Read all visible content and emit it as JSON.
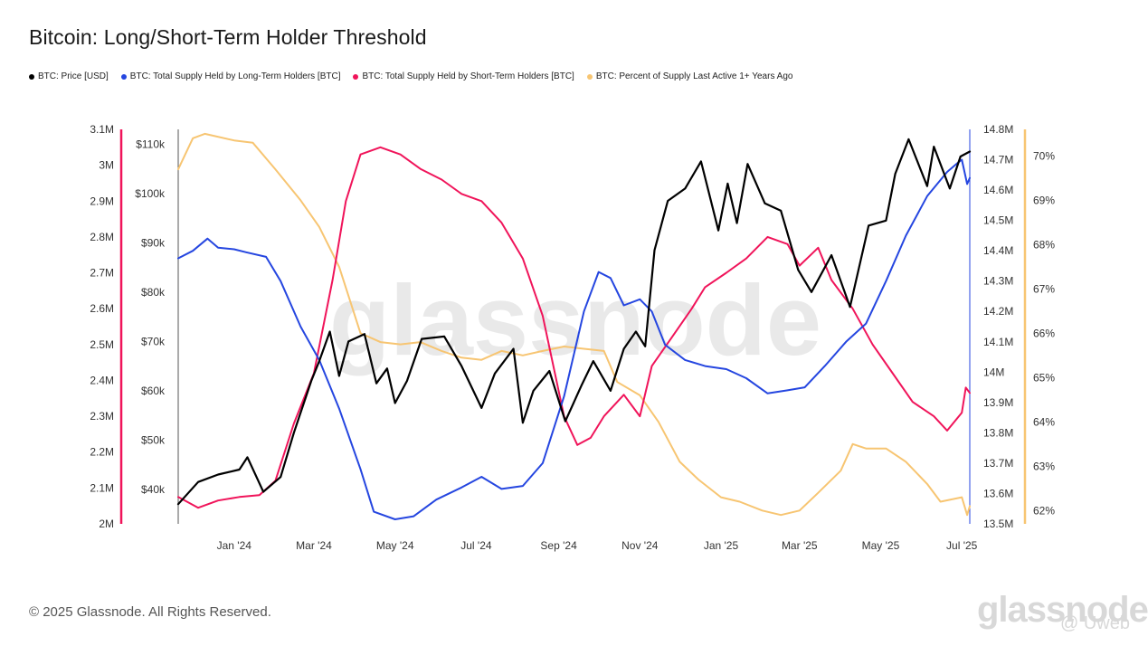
{
  "title": "Bitcoin: Long/Short-Term Holder Threshold",
  "footer": "© 2025 Glassnode. All Rights Reserved.",
  "watermark": "glassnode",
  "watermark_brand": "glassnode",
  "watermark_user": "@ Uweb",
  "colors": {
    "price": "#000000",
    "lth": "#2546e0",
    "sth": "#f0145a",
    "pct": "#f7c572"
  },
  "legend": [
    {
      "label": "BTC: Price [USD]",
      "color": "#000000"
    },
    {
      "label": "BTC: Total Supply Held by Long-Term Holders [BTC]",
      "color": "#2546e0"
    },
    {
      "label": "BTC: Total Supply Held by Short-Term Holders [BTC]",
      "color": "#f0145a"
    },
    {
      "label": "BTC: Percent of Supply Last Active 1+ Years Ago",
      "color": "#f7c572"
    }
  ],
  "chart_data": {
    "type": "line",
    "x_range": [
      "2023-11-20",
      "2025-07-07"
    ],
    "x_ticks": [
      "Jan '24",
      "Mar '24",
      "May '24",
      "Jul '24",
      "Sep '24",
      "Nov '24",
      "Jan '25",
      "Mar '25",
      "May '25",
      "Jul '25"
    ],
    "x_tick_dates": [
      "2024-01-01",
      "2024-03-01",
      "2024-05-01",
      "2024-07-01",
      "2024-09-01",
      "2024-11-01",
      "2025-01-01",
      "2025-03-01",
      "2025-05-01",
      "2025-07-01"
    ],
    "axes": {
      "sth_axis": {
        "side": "left-outer",
        "range": [
          2000000,
          3100000
        ],
        "ticks": [
          "3.1M",
          "3M",
          "2.9M",
          "2.8M",
          "2.7M",
          "2.6M",
          "2.5M",
          "2.4M",
          "2.3M",
          "2.2M",
          "2.1M",
          "2M"
        ]
      },
      "price_axis": {
        "side": "left-inner",
        "range": [
          33000,
          113000
        ],
        "ticks": [
          "$110k",
          "$100k",
          "$90k",
          "$80k",
          "$70k",
          "$60k",
          "$50k",
          "$40k"
        ]
      },
      "lth_axis": {
        "side": "right-inner",
        "range": [
          13500000,
          14800000
        ],
        "ticks": [
          "14.8M",
          "14.7M",
          "14.6M",
          "14.5M",
          "14.4M",
          "14.3M",
          "14.2M",
          "14.1M",
          "14M",
          "13.9M",
          "13.8M",
          "13.7M",
          "13.6M",
          "13.5M"
        ]
      },
      "pct_axis": {
        "side": "right-outer",
        "range": [
          61.7,
          70.6
        ],
        "ticks": [
          "70%",
          "69%",
          "68%",
          "67%",
          "66%",
          "65%",
          "64%",
          "63%",
          "62%"
        ]
      }
    },
    "series": [
      {
        "name": "BTC: Price [USD]",
        "color": "#000000",
        "axis": "price_axis",
        "points": [
          [
            "2023-11-20",
            37000
          ],
          [
            "2023-12-05",
            41500
          ],
          [
            "2023-12-20",
            43000
          ],
          [
            "2024-01-05",
            44000
          ],
          [
            "2024-01-11",
            46500
          ],
          [
            "2024-01-23",
            39500
          ],
          [
            "2024-02-05",
            42500
          ],
          [
            "2024-02-15",
            51500
          ],
          [
            "2024-02-28",
            62000
          ],
          [
            "2024-03-05",
            66000
          ],
          [
            "2024-03-13",
            72000
          ],
          [
            "2024-03-20",
            63000
          ],
          [
            "2024-03-27",
            70000
          ],
          [
            "2024-04-08",
            71500
          ],
          [
            "2024-04-17",
            61500
          ],
          [
            "2024-04-25",
            64500
          ],
          [
            "2024-05-01",
            57500
          ],
          [
            "2024-05-10",
            62000
          ],
          [
            "2024-05-21",
            70500
          ],
          [
            "2024-06-07",
            71000
          ],
          [
            "2024-06-20",
            65000
          ],
          [
            "2024-07-05",
            56500
          ],
          [
            "2024-07-15",
            63500
          ],
          [
            "2024-07-29",
            68500
          ],
          [
            "2024-08-05",
            53500
          ],
          [
            "2024-08-13",
            60000
          ],
          [
            "2024-08-25",
            64000
          ],
          [
            "2024-09-06",
            53800
          ],
          [
            "2024-09-18",
            61000
          ],
          [
            "2024-09-27",
            66000
          ],
          [
            "2024-10-10",
            60000
          ],
          [
            "2024-10-20",
            68500
          ],
          [
            "2024-10-29",
            72000
          ],
          [
            "2024-11-05",
            69000
          ],
          [
            "2024-11-12",
            88500
          ],
          [
            "2024-11-22",
            98500
          ],
          [
            "2024-12-05",
            101000
          ],
          [
            "2024-12-17",
            106500
          ],
          [
            "2024-12-30",
            92500
          ],
          [
            "2025-01-06",
            102000
          ],
          [
            "2025-01-13",
            94000
          ],
          [
            "2025-01-21",
            106000
          ],
          [
            "2025-02-03",
            98000
          ],
          [
            "2025-02-15",
            96500
          ],
          [
            "2025-02-28",
            84500
          ],
          [
            "2025-03-10",
            80000
          ],
          [
            "2025-03-25",
            87500
          ],
          [
            "2025-04-08",
            77000
          ],
          [
            "2025-04-22",
            93500
          ],
          [
            "2025-05-05",
            94500
          ],
          [
            "2025-05-12",
            104000
          ],
          [
            "2025-05-22",
            111000
          ],
          [
            "2025-06-05",
            101500
          ],
          [
            "2025-06-10",
            109500
          ],
          [
            "2025-06-22",
            101000
          ],
          [
            "2025-06-30",
            107500
          ],
          [
            "2025-07-07",
            108500
          ]
        ]
      },
      {
        "name": "BTC: Total Supply Held by Long-Term Holders [BTC]",
        "color": "#2546e0",
        "axis": "lth_axis",
        "points": [
          [
            "2023-11-20",
            14375000
          ],
          [
            "2023-12-01",
            14400000
          ],
          [
            "2023-12-12",
            14440000
          ],
          [
            "2023-12-20",
            14410000
          ],
          [
            "2024-01-01",
            14405000
          ],
          [
            "2024-01-10",
            14395000
          ],
          [
            "2024-01-25",
            14380000
          ],
          [
            "2024-02-05",
            14300000
          ],
          [
            "2024-02-20",
            14150000
          ],
          [
            "2024-03-05",
            14040000
          ],
          [
            "2024-03-20",
            13880000
          ],
          [
            "2024-04-05",
            13680000
          ],
          [
            "2024-04-15",
            13540000
          ],
          [
            "2024-05-01",
            13515000
          ],
          [
            "2024-05-15",
            13525000
          ],
          [
            "2024-06-01",
            13580000
          ],
          [
            "2024-06-20",
            13620000
          ],
          [
            "2024-07-05",
            13655000
          ],
          [
            "2024-07-20",
            13615000
          ],
          [
            "2024-08-05",
            13625000
          ],
          [
            "2024-08-20",
            13700000
          ],
          [
            "2024-09-05",
            13920000
          ],
          [
            "2024-09-20",
            14200000
          ],
          [
            "2024-10-01",
            14330000
          ],
          [
            "2024-10-10",
            14310000
          ],
          [
            "2024-10-20",
            14220000
          ],
          [
            "2024-11-01",
            14240000
          ],
          [
            "2024-11-10",
            14200000
          ],
          [
            "2024-11-20",
            14090000
          ],
          [
            "2024-12-05",
            14040000
          ],
          [
            "2024-12-20",
            14020000
          ],
          [
            "2025-01-05",
            14010000
          ],
          [
            "2025-01-20",
            13980000
          ],
          [
            "2025-02-05",
            13930000
          ],
          [
            "2025-02-20",
            13940000
          ],
          [
            "2025-03-05",
            13950000
          ],
          [
            "2025-03-20",
            14020000
          ],
          [
            "2025-04-05",
            14100000
          ],
          [
            "2025-04-20",
            14160000
          ],
          [
            "2025-05-05",
            14300000
          ],
          [
            "2025-05-20",
            14450000
          ],
          [
            "2025-06-05",
            14580000
          ],
          [
            "2025-06-20",
            14660000
          ],
          [
            "2025-06-28",
            14690000
          ],
          [
            "2025-07-01",
            14700000
          ],
          [
            "2025-07-05",
            14620000
          ],
          [
            "2025-07-07",
            14640000
          ]
        ]
      },
      {
        "name": "BTC: Total Supply Held by Short-Term Holders [BTC]",
        "color": "#f0145a",
        "axis": "sth_axis",
        "points": [
          [
            "2023-11-20",
            2075000
          ],
          [
            "2023-12-05",
            2045000
          ],
          [
            "2023-12-20",
            2065000
          ],
          [
            "2024-01-05",
            2075000
          ],
          [
            "2024-01-20",
            2080000
          ],
          [
            "2024-02-01",
            2120000
          ],
          [
            "2024-02-15",
            2280000
          ],
          [
            "2024-03-01",
            2420000
          ],
          [
            "2024-03-15",
            2680000
          ],
          [
            "2024-03-25",
            2900000
          ],
          [
            "2024-04-05",
            3030000
          ],
          [
            "2024-04-20",
            3050000
          ],
          [
            "2024-05-05",
            3030000
          ],
          [
            "2024-05-20",
            2990000
          ],
          [
            "2024-06-05",
            2960000
          ],
          [
            "2024-06-20",
            2920000
          ],
          [
            "2024-07-05",
            2900000
          ],
          [
            "2024-07-20",
            2840000
          ],
          [
            "2024-08-05",
            2740000
          ],
          [
            "2024-08-20",
            2580000
          ],
          [
            "2024-09-05",
            2300000
          ],
          [
            "2024-09-15",
            2220000
          ],
          [
            "2024-09-25",
            2240000
          ],
          [
            "2024-10-05",
            2300000
          ],
          [
            "2024-10-20",
            2360000
          ],
          [
            "2024-11-01",
            2300000
          ],
          [
            "2024-11-10",
            2440000
          ],
          [
            "2024-11-25",
            2520000
          ],
          [
            "2024-12-10",
            2600000
          ],
          [
            "2024-12-20",
            2660000
          ],
          [
            "2025-01-05",
            2700000
          ],
          [
            "2025-01-20",
            2740000
          ],
          [
            "2025-02-05",
            2800000
          ],
          [
            "2025-02-20",
            2780000
          ],
          [
            "2025-03-01",
            2720000
          ],
          [
            "2025-03-15",
            2770000
          ],
          [
            "2025-03-25",
            2680000
          ],
          [
            "2025-04-10",
            2600000
          ],
          [
            "2025-04-25",
            2500000
          ],
          [
            "2025-05-10",
            2420000
          ],
          [
            "2025-05-25",
            2340000
          ],
          [
            "2025-06-10",
            2300000
          ],
          [
            "2025-06-20",
            2260000
          ],
          [
            "2025-07-01",
            2310000
          ],
          [
            "2025-07-04",
            2380000
          ],
          [
            "2025-07-07",
            2365000
          ]
        ]
      },
      {
        "name": "BTC: Percent of Supply Last Active 1+ Years Ago",
        "color": "#f7c572",
        "axis": "pct_axis",
        "points": [
          [
            "2023-11-20",
            69.7
          ],
          [
            "2023-12-01",
            70.4
          ],
          [
            "2023-12-10",
            70.5
          ],
          [
            "2024-01-01",
            70.35
          ],
          [
            "2024-01-15",
            70.3
          ],
          [
            "2024-02-01",
            69.7
          ],
          [
            "2024-02-20",
            69.0
          ],
          [
            "2024-03-05",
            68.4
          ],
          [
            "2024-03-20",
            67.5
          ],
          [
            "2024-04-05",
            66.0
          ],
          [
            "2024-04-20",
            65.8
          ],
          [
            "2024-05-05",
            65.75
          ],
          [
            "2024-05-20",
            65.8
          ],
          [
            "2024-06-05",
            65.6
          ],
          [
            "2024-06-20",
            65.45
          ],
          [
            "2024-07-05",
            65.4
          ],
          [
            "2024-07-20",
            65.6
          ],
          [
            "2024-08-05",
            65.5
          ],
          [
            "2024-08-20",
            65.6
          ],
          [
            "2024-09-05",
            65.7
          ],
          [
            "2024-09-20",
            65.65
          ],
          [
            "2024-10-05",
            65.6
          ],
          [
            "2024-10-15",
            64.9
          ],
          [
            "2024-11-01",
            64.6
          ],
          [
            "2024-11-15",
            64.0
          ],
          [
            "2024-12-01",
            63.1
          ],
          [
            "2024-12-15",
            62.7
          ],
          [
            "2025-01-01",
            62.3
          ],
          [
            "2025-01-15",
            62.2
          ],
          [
            "2025-02-01",
            62.0
          ],
          [
            "2025-02-15",
            61.9
          ],
          [
            "2025-03-01",
            62.0
          ],
          [
            "2025-03-15",
            62.4
          ],
          [
            "2025-04-01",
            62.9
          ],
          [
            "2025-04-10",
            63.5
          ],
          [
            "2025-04-20",
            63.4
          ],
          [
            "2025-05-05",
            63.4
          ],
          [
            "2025-05-20",
            63.1
          ],
          [
            "2025-06-05",
            62.6
          ],
          [
            "2025-06-15",
            62.2
          ],
          [
            "2025-07-01",
            62.3
          ],
          [
            "2025-07-05",
            61.9
          ],
          [
            "2025-07-07",
            62.1
          ]
        ]
      }
    ]
  }
}
